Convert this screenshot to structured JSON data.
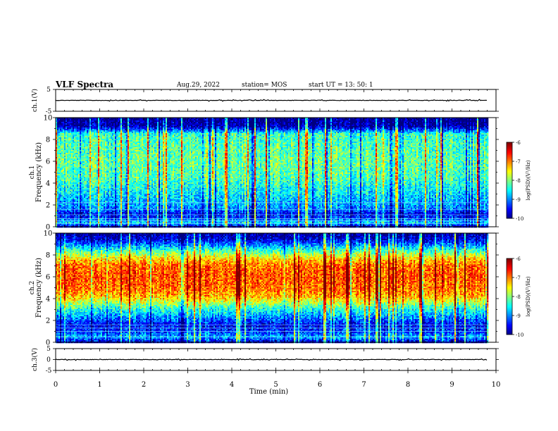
{
  "header": {
    "title": "VLF Spectra",
    "date": "Aug.29, 2022",
    "station": "station= MOS",
    "start": "start  UT  =   13: 50: 1"
  },
  "chart_data": [
    {
      "type": "line",
      "panel": "ch1-waveform",
      "ylabel": "ch.1(V)",
      "ylim": [
        -5,
        5
      ],
      "yticks": [
        5,
        -5
      ],
      "level": 0,
      "xlim": [
        0,
        10
      ]
    },
    {
      "type": "heatmap",
      "panel": "ch1-spectrogram",
      "ylabel": "ch.1",
      "ylabel2": "Frequency (kHz)",
      "ylim": [
        0,
        10
      ],
      "yticks": [
        0,
        2,
        4,
        6,
        8,
        10
      ],
      "xlim": [
        0,
        10
      ],
      "data_end_min": 9.8,
      "colorbar": {
        "label": "log(PSD)(V²/Hz)",
        "ticks": [
          -6,
          -7,
          -8,
          -9,
          -10
        ],
        "range": [
          -10,
          -6
        ]
      },
      "profile": [
        [
          0.0,
          -9.6
        ],
        [
          0.4,
          -8.6
        ],
        [
          0.8,
          -9.3
        ],
        [
          1.2,
          -9.5
        ],
        [
          1.6,
          -9.0
        ],
        [
          2.2,
          -8.8
        ],
        [
          3.0,
          -8.6
        ],
        [
          4.5,
          -8.2
        ],
        [
          6.0,
          -8.1
        ],
        [
          7.5,
          -8.2
        ],
        [
          8.5,
          -8.3
        ],
        [
          8.8,
          -9.0
        ],
        [
          9.2,
          -9.8
        ],
        [
          10.0,
          -10.0
        ]
      ],
      "lines_khz": [
        0.3,
        0.55,
        0.75,
        1.1,
        1.6,
        2.2
      ]
    },
    {
      "type": "heatmap",
      "panel": "ch2-spectrogram",
      "ylabel": "ch.2",
      "ylabel2": "Frequency (kHz)",
      "ylim": [
        0,
        10
      ],
      "yticks": [
        0,
        2,
        4,
        6,
        8,
        10
      ],
      "xlim": [
        0,
        10
      ],
      "data_end_min": 9.8,
      "colorbar": {
        "label": "log(PSD)(V²/Hz)",
        "ticks": [
          -6,
          -7,
          -8,
          -9,
          -10
        ],
        "range": [
          -10,
          -6
        ]
      },
      "profile": [
        [
          0.0,
          -9.6
        ],
        [
          0.5,
          -8.8
        ],
        [
          1.0,
          -9.3
        ],
        [
          1.6,
          -9.5
        ],
        [
          2.2,
          -9.0
        ],
        [
          3.0,
          -8.4
        ],
        [
          3.6,
          -7.8
        ],
        [
          4.2,
          -7.2
        ],
        [
          5.0,
          -6.9
        ],
        [
          6.0,
          -6.8
        ],
        [
          7.0,
          -6.9
        ],
        [
          7.6,
          -7.3
        ],
        [
          8.2,
          -8.0
        ],
        [
          8.8,
          -8.8
        ],
        [
          9.3,
          -9.5
        ],
        [
          10.0,
          -9.9
        ]
      ],
      "lines_khz": [
        0.5,
        1.0,
        1.3,
        1.6
      ]
    },
    {
      "type": "line",
      "panel": "ch3-waveform",
      "ylabel": "ch.3(V)",
      "ylim": [
        -5,
        5
      ],
      "yticks": [
        5,
        0,
        -5
      ],
      "level": 0,
      "xlim": [
        0,
        10
      ],
      "xlabel": "Time  (min)",
      "xticks": [
        0,
        1,
        2,
        3,
        4,
        5,
        6,
        7,
        8,
        9,
        10
      ]
    }
  ]
}
